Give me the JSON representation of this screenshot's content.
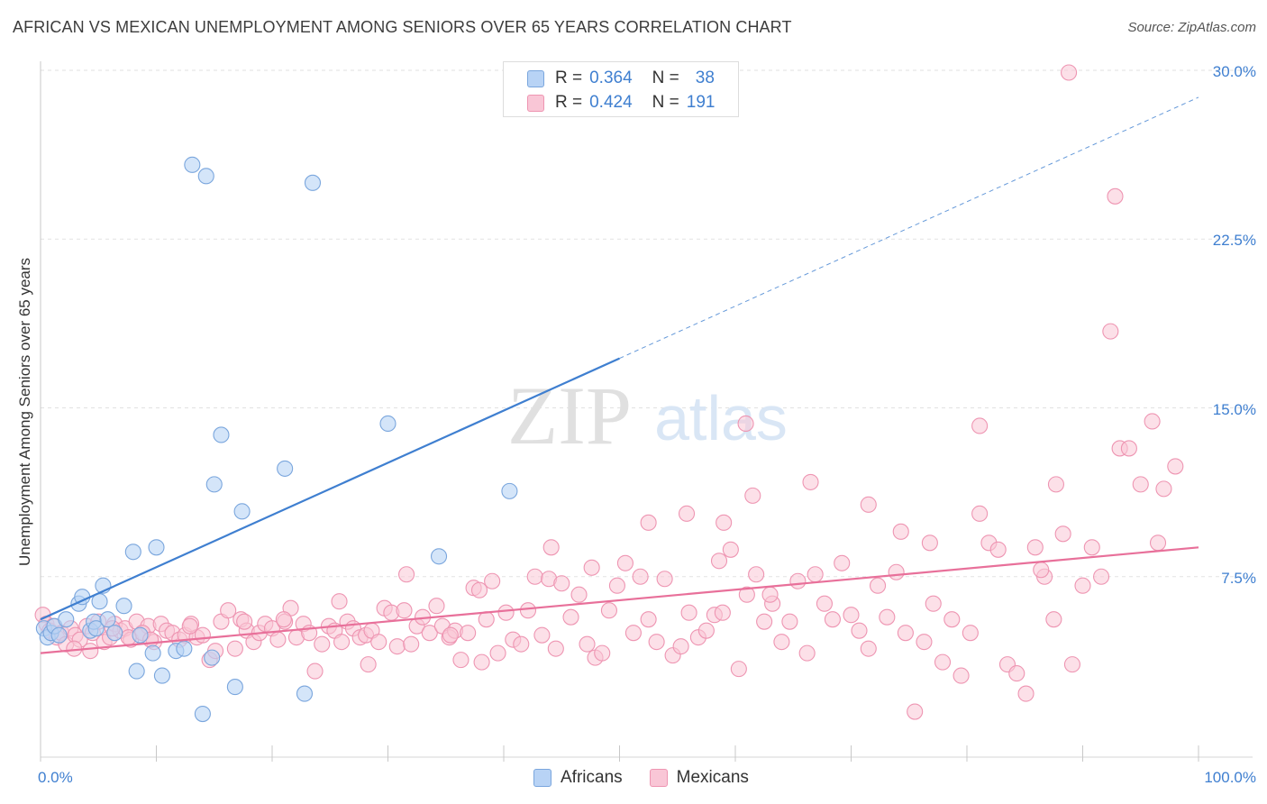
{
  "header": {
    "title": "AFRICAN VS MEXICAN UNEMPLOYMENT AMONG SENIORS OVER 65 YEARS CORRELATION CHART",
    "source": "Source: ZipAtlas.com"
  },
  "legend_top": {
    "africans": {
      "r_label": "R =",
      "r_value": "0.364",
      "n_label": "N =",
      "n_value": "38"
    },
    "mexicans": {
      "r_label": "R =",
      "r_value": "0.424",
      "n_label": "N =",
      "n_value": "191"
    }
  },
  "legend_bottom": {
    "africans": "Africans",
    "mexicans": "Mexicans"
  },
  "colors": {
    "africans_fill": "#b8d3f5",
    "africans_stroke": "#7aa6dd",
    "africans_line": "#3f7fd0",
    "mexicans_fill": "#f9c6d6",
    "mexicans_stroke": "#ee95b2",
    "mexicans_line": "#e8709a",
    "tick_text": "#3f7fd0"
  },
  "watermark": {
    "zip": "ZIP",
    "atlas": "atlas"
  },
  "chart_data": {
    "type": "scatter",
    "title": "AFRICAN VS MEXICAN UNEMPLOYMENT AMONG SENIORS OVER 65 YEARS CORRELATION CHART",
    "xlabel": "",
    "ylabel": "Unemployment Among Seniors over 65 years",
    "xlim": [
      0,
      100
    ],
    "ylim": [
      0,
      30
    ],
    "y_ticks": [
      7.5,
      15.0,
      22.5,
      30.0
    ],
    "y_tick_labels": [
      "7.5%",
      "15.0%",
      "22.5%",
      "30.0%"
    ],
    "x_tick_labels": [
      "0.0%",
      "100.0%"
    ],
    "grid": true,
    "series": [
      {
        "name": "Africans",
        "trend": {
          "x0": 0,
          "y0": 5.6,
          "x1": 100,
          "y1": 28.8,
          "solid_until_x": 50
        },
        "points": [
          [
            0.3,
            5.2
          ],
          [
            0.6,
            4.8
          ],
          [
            0.9,
            5.0
          ],
          [
            1.2,
            5.3
          ],
          [
            1.6,
            4.9
          ],
          [
            2.2,
            5.6
          ],
          [
            3.3,
            6.3
          ],
          [
            3.6,
            6.6
          ],
          [
            4.3,
            5.1
          ],
          [
            4.6,
            5.5
          ],
          [
            4.8,
            5.2
          ],
          [
            5.1,
            6.4
          ],
          [
            5.4,
            7.1
          ],
          [
            5.8,
            5.6
          ],
          [
            6.4,
            5.0
          ],
          [
            7.2,
            6.2
          ],
          [
            8.0,
            8.6
          ],
          [
            9.7,
            4.1
          ],
          [
            10.0,
            8.8
          ],
          [
            11.7,
            4.2
          ],
          [
            12.4,
            4.3
          ],
          [
            14.0,
            1.4
          ],
          [
            14.8,
            3.9
          ],
          [
            15.0,
            11.6
          ],
          [
            15.6,
            13.8
          ],
          [
            16.8,
            2.6
          ],
          [
            17.4,
            10.4
          ],
          [
            21.1,
            12.3
          ],
          [
            22.8,
            2.3
          ],
          [
            30.0,
            14.3
          ],
          [
            34.4,
            8.4
          ],
          [
            40.5,
            11.3
          ],
          [
            13.1,
            25.8
          ],
          [
            14.3,
            25.3
          ],
          [
            23.5,
            25.0
          ],
          [
            8.3,
            3.3
          ],
          [
            8.6,
            4.9
          ],
          [
            10.5,
            3.1
          ]
        ]
      },
      {
        "name": "Mexicans",
        "trend": {
          "x0": 0,
          "y0": 4.1,
          "x1": 100,
          "y1": 8.8
        },
        "points": [
          [
            0.2,
            5.8
          ],
          [
            0.5,
            5.4
          ],
          [
            0.8,
            5.1
          ],
          [
            1.1,
            5.3
          ],
          [
            1.4,
            4.8
          ],
          [
            1.8,
            5.0
          ],
          [
            2.2,
            4.5
          ],
          [
            2.6,
            5.2
          ],
          [
            3.0,
            4.9
          ],
          [
            3.4,
            4.7
          ],
          [
            4.0,
            5.3
          ],
          [
            4.5,
            5.0
          ],
          [
            5.0,
            5.5
          ],
          [
            5.5,
            4.6
          ],
          [
            6.0,
            4.8
          ],
          [
            6.4,
            5.4
          ],
          [
            6.9,
            5.1
          ],
          [
            7.3,
            5.2
          ],
          [
            7.8,
            4.7
          ],
          [
            8.3,
            5.5
          ],
          [
            8.8,
            5.0
          ],
          [
            9.3,
            5.3
          ],
          [
            9.8,
            4.6
          ],
          [
            10.4,
            5.4
          ],
          [
            10.9,
            5.1
          ],
          [
            11.4,
            5.0
          ],
          [
            12.0,
            4.7
          ],
          [
            12.5,
            4.9
          ],
          [
            13.0,
            5.4
          ],
          [
            13.5,
            4.8
          ],
          [
            14.0,
            4.9
          ],
          [
            14.6,
            3.8
          ],
          [
            15.1,
            4.2
          ],
          [
            15.6,
            5.5
          ],
          [
            16.2,
            6.0
          ],
          [
            16.8,
            4.3
          ],
          [
            17.3,
            5.6
          ],
          [
            17.8,
            5.1
          ],
          [
            18.4,
            4.6
          ],
          [
            18.9,
            5.0
          ],
          [
            19.4,
            5.4
          ],
          [
            20.0,
            5.2
          ],
          [
            20.5,
            4.7
          ],
          [
            21.1,
            5.5
          ],
          [
            21.6,
            6.1
          ],
          [
            22.1,
            4.8
          ],
          [
            22.7,
            5.4
          ],
          [
            23.2,
            5.0
          ],
          [
            23.7,
            3.3
          ],
          [
            24.3,
            4.5
          ],
          [
            24.9,
            5.3
          ],
          [
            25.4,
            5.1
          ],
          [
            26.0,
            4.6
          ],
          [
            26.5,
            5.5
          ],
          [
            27.0,
            5.2
          ],
          [
            27.6,
            4.8
          ],
          [
            28.1,
            4.9
          ],
          [
            28.6,
            5.1
          ],
          [
            29.2,
            4.6
          ],
          [
            29.7,
            6.1
          ],
          [
            30.3,
            5.9
          ],
          [
            30.8,
            4.4
          ],
          [
            31.4,
            6.0
          ],
          [
            32.0,
            4.5
          ],
          [
            32.5,
            5.3
          ],
          [
            33.0,
            5.7
          ],
          [
            33.6,
            5.0
          ],
          [
            34.2,
            6.2
          ],
          [
            34.7,
            5.3
          ],
          [
            35.3,
            4.8
          ],
          [
            35.8,
            5.1
          ],
          [
            36.3,
            3.8
          ],
          [
            36.9,
            5.0
          ],
          [
            37.4,
            7.0
          ],
          [
            37.9,
            6.9
          ],
          [
            38.5,
            5.6
          ],
          [
            39.0,
            7.3
          ],
          [
            39.5,
            4.1
          ],
          [
            40.2,
            5.9
          ],
          [
            40.8,
            4.7
          ],
          [
            41.5,
            4.5
          ],
          [
            42.1,
            6.0
          ],
          [
            42.7,
            7.5
          ],
          [
            43.3,
            4.9
          ],
          [
            43.9,
            7.4
          ],
          [
            44.5,
            4.3
          ],
          [
            45.0,
            7.2
          ],
          [
            45.8,
            5.7
          ],
          [
            46.5,
            6.7
          ],
          [
            47.2,
            4.5
          ],
          [
            47.9,
            3.9
          ],
          [
            48.5,
            4.1
          ],
          [
            49.1,
            6.0
          ],
          [
            49.8,
            7.1
          ],
          [
            50.5,
            8.1
          ],
          [
            51.2,
            5.0
          ],
          [
            51.8,
            7.5
          ],
          [
            52.5,
            5.6
          ],
          [
            53.2,
            4.6
          ],
          [
            53.9,
            7.4
          ],
          [
            54.6,
            4.0
          ],
          [
            55.3,
            4.4
          ],
          [
            56.0,
            5.9
          ],
          [
            56.8,
            4.8
          ],
          [
            57.5,
            5.1
          ],
          [
            58.2,
            5.8
          ],
          [
            58.9,
            5.9
          ],
          [
            59.6,
            8.7
          ],
          [
            60.3,
            3.4
          ],
          [
            61.0,
            6.7
          ],
          [
            61.8,
            7.6
          ],
          [
            62.5,
            5.5
          ],
          [
            63.2,
            6.3
          ],
          [
            64.0,
            4.6
          ],
          [
            64.7,
            5.5
          ],
          [
            65.4,
            7.3
          ],
          [
            66.2,
            4.1
          ],
          [
            66.9,
            7.6
          ],
          [
            67.7,
            6.3
          ],
          [
            68.4,
            5.6
          ],
          [
            69.2,
            8.1
          ],
          [
            70.0,
            5.8
          ],
          [
            70.7,
            5.1
          ],
          [
            71.5,
            4.3
          ],
          [
            72.3,
            7.1
          ],
          [
            73.1,
            5.7
          ],
          [
            73.9,
            7.7
          ],
          [
            74.7,
            5.0
          ],
          [
            75.5,
            1.5
          ],
          [
            76.3,
            4.6
          ],
          [
            77.1,
            6.3
          ],
          [
            77.9,
            3.7
          ],
          [
            78.7,
            5.6
          ],
          [
            79.5,
            3.1
          ],
          [
            80.3,
            5.0
          ],
          [
            81.1,
            10.3
          ],
          [
            81.9,
            9.0
          ],
          [
            82.7,
            8.7
          ],
          [
            83.5,
            3.6
          ],
          [
            84.3,
            3.2
          ],
          [
            85.1,
            2.3
          ],
          [
            85.9,
            8.8
          ],
          [
            86.7,
            7.5
          ],
          [
            87.5,
            5.6
          ],
          [
            88.3,
            9.4
          ],
          [
            89.1,
            3.6
          ],
          [
            90.0,
            7.1
          ],
          [
            90.8,
            8.8
          ],
          [
            91.6,
            7.5
          ],
          [
            92.4,
            18.4
          ],
          [
            93.2,
            13.2
          ],
          [
            94.0,
            13.2
          ],
          [
            95.0,
            11.6
          ],
          [
            96.0,
            14.4
          ],
          [
            97.0,
            11.4
          ],
          [
            98.0,
            12.4
          ],
          [
            71.5,
            10.7
          ],
          [
            74.3,
            9.5
          ],
          [
            76.8,
            9.0
          ],
          [
            81.1,
            14.2
          ],
          [
            87.7,
            11.6
          ],
          [
            92.8,
            24.4
          ],
          [
            88.8,
            29.9
          ],
          [
            66.5,
            11.7
          ],
          [
            63.0,
            6.7
          ],
          [
            55.8,
            10.3
          ],
          [
            52.5,
            9.9
          ],
          [
            61.5,
            11.1
          ],
          [
            60.9,
            14.3
          ],
          [
            59.0,
            9.9
          ],
          [
            58.6,
            8.2
          ],
          [
            47.6,
            7.9
          ],
          [
            44.1,
            8.8
          ],
          [
            31.6,
            7.6
          ],
          [
            28.3,
            3.6
          ],
          [
            25.8,
            6.4
          ],
          [
            21.0,
            5.6
          ],
          [
            17.6,
            5.5
          ],
          [
            12.9,
            5.3
          ],
          [
            8.8,
            5.0
          ],
          [
            7.6,
            4.8
          ],
          [
            6.2,
            5.2
          ],
          [
            2.9,
            4.3
          ],
          [
            4.3,
            4.2
          ],
          [
            86.4,
            7.8
          ],
          [
            96.5,
            9.0
          ],
          [
            38.1,
            3.7
          ],
          [
            35.4,
            4.9
          ],
          [
            9.5,
            4.7
          ]
        ]
      }
    ]
  }
}
